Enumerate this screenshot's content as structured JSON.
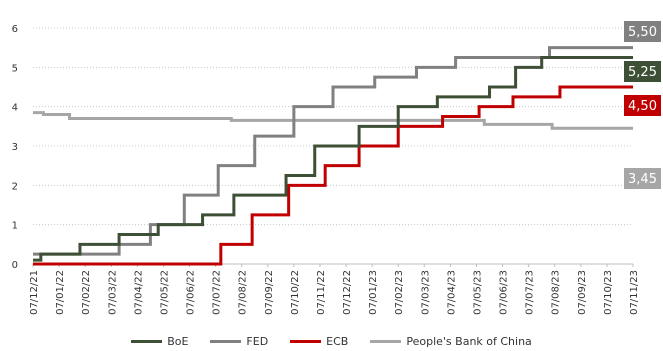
{
  "chart_data": {
    "type": "line",
    "step": true,
    "title": "",
    "xlabel": "",
    "ylabel": "",
    "ylim": [
      0,
      6
    ],
    "yticks": [
      "0",
      "1",
      "2",
      "3",
      "4",
      "5",
      "6"
    ],
    "grid": "horizontal dotted",
    "legend_position": "bottom",
    "x": [
      "07/12/21",
      "07/01/22",
      "07/02/22",
      "07/03/22",
      "07/04/22",
      "07/05/22",
      "07/06/22",
      "07/07/22",
      "07/08/22",
      "07/09/22",
      "07/10/22",
      "07/11/22",
      "07/12/22",
      "07/01/23",
      "07/02/23",
      "07/03/23",
      "07/04/23",
      "07/05/23",
      "07/06/23",
      "07/07/23",
      "07/08/23",
      "07/09/23",
      "07/10/23",
      "07/11/23"
    ],
    "series": [
      {
        "name": "BoE",
        "color": "#3d4f35",
        "end_label": "5,25",
        "steps": [
          [
            0,
            0.1
          ],
          [
            0.3,
            0.25
          ],
          [
            1.8,
            0.5
          ],
          [
            3.3,
            0.75
          ],
          [
            4.8,
            1.0
          ],
          [
            6.5,
            1.25
          ],
          [
            7.7,
            1.75
          ],
          [
            9.7,
            2.25
          ],
          [
            10.8,
            3.0
          ],
          [
            12.5,
            3.5
          ],
          [
            14.0,
            4.0
          ],
          [
            15.5,
            4.25
          ],
          [
            17.5,
            4.5
          ],
          [
            18.5,
            5.0
          ],
          [
            19.5,
            5.25
          ],
          [
            23.0,
            5.25
          ]
        ]
      },
      {
        "name": "FED",
        "color": "#808080",
        "end_label": "5,50",
        "steps": [
          [
            0,
            0.25
          ],
          [
            3.3,
            0.5
          ],
          [
            4.5,
            1.0
          ],
          [
            5.8,
            1.75
          ],
          [
            7.1,
            2.5
          ],
          [
            8.5,
            3.25
          ],
          [
            10.0,
            4.0
          ],
          [
            11.5,
            4.5
          ],
          [
            13.1,
            4.75
          ],
          [
            14.7,
            5.0
          ],
          [
            16.2,
            5.25
          ],
          [
            19.8,
            5.5
          ],
          [
            23.0,
            5.5
          ]
        ]
      },
      {
        "name": "ECB",
        "color": "#c00000",
        "end_label": "4,50",
        "steps": [
          [
            0,
            0.0
          ],
          [
            7.2,
            0.5
          ],
          [
            8.4,
            1.25
          ],
          [
            9.8,
            2.0
          ],
          [
            11.2,
            2.5
          ],
          [
            12.5,
            3.0
          ],
          [
            14.0,
            3.5
          ],
          [
            15.7,
            3.75
          ],
          [
            17.1,
            4.0
          ],
          [
            18.4,
            4.25
          ],
          [
            20.2,
            4.5
          ],
          [
            23.0,
            4.5
          ]
        ]
      },
      {
        "name": "People's Bank of China",
        "color": "#a6a6a6",
        "end_label": "3,45",
        "steps": [
          [
            0,
            3.85
          ],
          [
            0.4,
            3.8
          ],
          [
            1.4,
            3.7
          ],
          [
            7.6,
            3.65
          ],
          [
            17.3,
            3.55
          ],
          [
            19.9,
            3.45
          ],
          [
            23.0,
            3.45
          ]
        ]
      }
    ]
  }
}
